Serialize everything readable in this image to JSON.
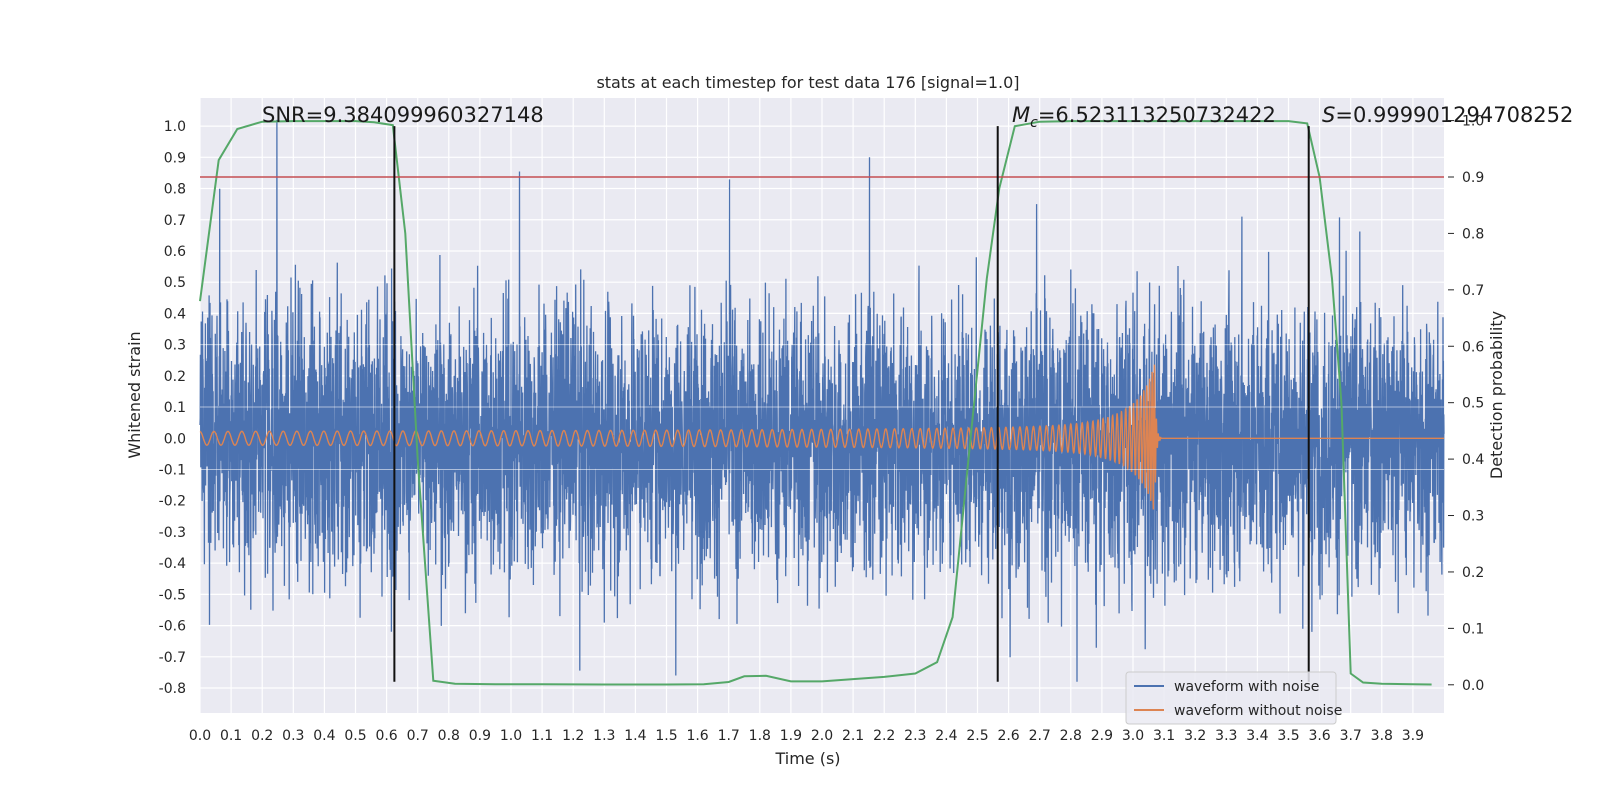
{
  "chart_data": {
    "type": "line",
    "title": "stats at each timestep for test data 176 [signal=1.0]",
    "xlabel": "Time (s)",
    "ylabel": "Whitened strain",
    "ylabel_right": "Detection probability",
    "xlim": [
      0.0,
      4.0
    ],
    "ylim": [
      -0.88,
      1.09
    ],
    "ylim_right": [
      -0.05,
      1.04
    ],
    "grid": true,
    "legend_position": "bottom-right",
    "x_ticks": [
      "0.0",
      "0.1",
      "0.2",
      "0.3",
      "0.4",
      "0.5",
      "0.6",
      "0.7",
      "0.8",
      "0.9",
      "1.0",
      "1.1",
      "1.2",
      "1.3",
      "1.4",
      "1.5",
      "1.6",
      "1.7",
      "1.8",
      "1.9",
      "2.0",
      "2.1",
      "2.2",
      "2.3",
      "2.4",
      "2.5",
      "2.6",
      "2.7",
      "2.8",
      "2.9",
      "3.0",
      "3.1",
      "3.2",
      "3.3",
      "3.4",
      "3.5",
      "3.6",
      "3.7",
      "3.8",
      "3.9"
    ],
    "y_ticks": [
      "-0.8",
      "-0.7",
      "-0.6",
      "-0.5",
      "-0.4",
      "-0.3",
      "-0.2",
      "-0.1",
      "0.0",
      "0.1",
      "0.2",
      "0.3",
      "0.4",
      "0.5",
      "0.6",
      "0.7",
      "0.8",
      "0.9",
      "1.0"
    ],
    "y_ticks_right": [
      "0.0",
      "0.1",
      "0.2",
      "0.3",
      "0.4",
      "0.5",
      "0.6",
      "0.7",
      "0.8",
      "0.9",
      "1.0"
    ],
    "annotations": {
      "snr": "SNR=9.384099960327148",
      "mc_symbol": "M",
      "mc_sub": "c",
      "mc_value": "=6.523113250732422",
      "s_symbol": "S",
      "s_value": "=0.999901294708252"
    },
    "vertical_lines": [
      0.625,
      2.565,
      3.565
    ],
    "vertical_line_range": [
      -0.78,
      1.0
    ],
    "threshold_right": 0.9,
    "series": [
      {
        "name": "waveform with noise",
        "color": "#4c72b0",
        "axis": "left",
        "description_values": {
          "std": 0.21,
          "t_range": [
            0.0,
            4.0
          ]
        },
        "peaks": [
          [
            0.247,
            1.02
          ],
          [
            0.615,
            -0.62
          ],
          [
            1.53,
            -0.76
          ],
          [
            2.69,
            0.75
          ],
          [
            2.82,
            -0.78
          ],
          [
            3.35,
            0.71
          ]
        ]
      },
      {
        "name": "waveform without noise",
        "color": "#dd8452",
        "axis": "left",
        "chirp": {
          "t_merger": 3.07,
          "amp_start": 0.022,
          "amp_peak": 0.24,
          "f_start": 22,
          "f_end": 260
        }
      },
      {
        "name": "",
        "color": "#55a868",
        "axis": "right",
        "x": [
          0.0,
          0.06,
          0.12,
          0.2,
          0.3,
          0.4,
          0.5,
          0.56,
          0.62,
          0.66,
          0.7,
          0.75,
          0.82,
          0.95,
          1.1,
          1.3,
          1.5,
          1.62,
          1.7,
          1.75,
          1.82,
          1.9,
          2.0,
          2.1,
          2.2,
          2.3,
          2.37,
          2.42,
          2.48,
          2.53,
          2.57,
          2.62,
          2.7,
          2.8,
          3.0,
          3.2,
          3.4,
          3.5,
          3.56,
          3.6,
          3.64,
          3.67,
          3.7,
          3.74,
          3.8,
          3.9,
          3.96
        ],
        "values": [
          0.68,
          0.93,
          0.985,
          0.998,
          0.999,
          0.999,
          0.999,
          0.997,
          0.992,
          0.8,
          0.4,
          0.007,
          0.002,
          0.001,
          0.001,
          0.0005,
          0.0005,
          0.001,
          0.005,
          0.015,
          0.016,
          0.006,
          0.006,
          0.01,
          0.014,
          0.02,
          0.04,
          0.12,
          0.45,
          0.72,
          0.88,
          0.99,
          0.998,
          0.999,
          0.999,
          0.999,
          0.999,
          0.999,
          0.995,
          0.9,
          0.72,
          0.5,
          0.02,
          0.004,
          0.002,
          0.001,
          0.0005
        ]
      },
      {
        "name": "",
        "color": "#c44e52",
        "axis": "right",
        "x": [
          0.0,
          4.0
        ],
        "values": [
          0.9,
          0.9
        ]
      }
    ]
  }
}
